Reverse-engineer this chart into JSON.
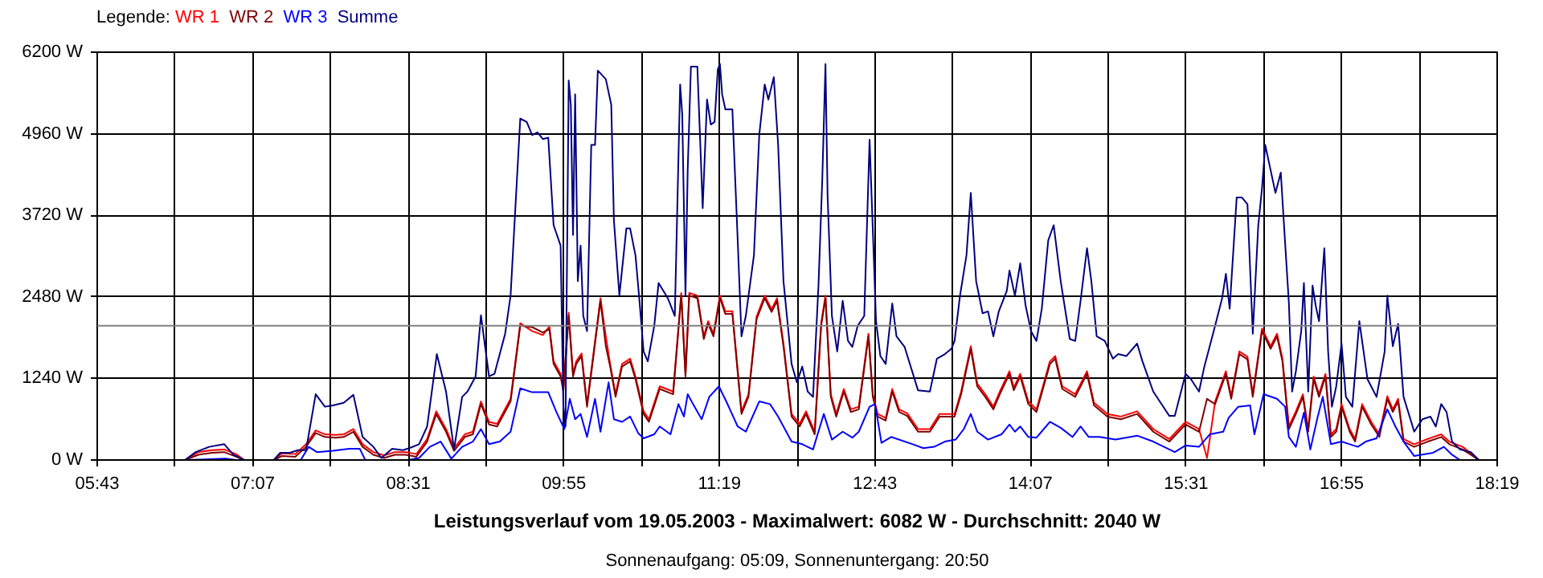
{
  "chart_data": {
    "type": "line",
    "title": "Leistungsverlauf vom 19.05.2003 - Maximalwert: 6082 W - Durchschnitt: 2040 W",
    "subtitle": "Sonnenaufgang: 05:09, Sonnenuntergang: 20:50",
    "legend_title": "Legende:",
    "legend": "top left",
    "grid": true,
    "xlim": [
      5.7167,
      18.3167
    ],
    "xticks": [
      {
        "value": 5.7167,
        "label": "05:43"
      },
      {
        "value": 6.4167,
        "label": null
      },
      {
        "value": 7.1167,
        "label": "07:07"
      },
      {
        "value": 7.8167,
        "label": null
      },
      {
        "value": 8.5167,
        "label": "08:31"
      },
      {
        "value": 9.2167,
        "label": null
      },
      {
        "value": 9.9167,
        "label": "09:55"
      },
      {
        "value": 10.6167,
        "label": null
      },
      {
        "value": 11.3167,
        "label": "11:19"
      },
      {
        "value": 12.0167,
        "label": null
      },
      {
        "value": 12.7167,
        "label": "12:43"
      },
      {
        "value": 13.4167,
        "label": null
      },
      {
        "value": 14.1167,
        "label": "14:07"
      },
      {
        "value": 14.8167,
        "label": null
      },
      {
        "value": 15.5167,
        "label": "15:31"
      },
      {
        "value": 16.2167,
        "label": null
      },
      {
        "value": 16.9167,
        "label": "16:55"
      },
      {
        "value": 17.6167,
        "label": null
      },
      {
        "value": 18.3167,
        "label": "18:19"
      }
    ],
    "ylim": [
      0,
      6200
    ],
    "yticks": [
      {
        "value": 0,
        "label": "0 W"
      },
      {
        "value": 1240,
        "label": "1240 W"
      },
      {
        "value": 2480,
        "label": "2480 W"
      },
      {
        "value": 3720,
        "label": "3720 W"
      },
      {
        "value": 4960,
        "label": "4960 W"
      },
      {
        "value": 6200,
        "label": "6200 W"
      }
    ],
    "ref_lines": [
      {
        "axis": "y",
        "value": 2040,
        "label": null,
        "color": "#808080"
      }
    ],
    "series": [
      {
        "name": "WR 1",
        "color": "#ff0000",
        "x": [
          6.506,
          6.627,
          6.748,
          6.86,
          6.966,
          7.039,
          7.306,
          7.378,
          7.499,
          7.596,
          7.683,
          7.766,
          7.862,
          7.935,
          8.022,
          8.105,
          8.202,
          8.299,
          8.395,
          8.492,
          8.589,
          8.686,
          8.768,
          8.856,
          8.928,
          9.025,
          9.098,
          9.17,
          9.243,
          9.316,
          9.437,
          9.524,
          9.631,
          9.727,
          9.786,
          9.824,
          9.887,
          9.912,
          9.96,
          9.999,
          10.028,
          10.076,
          10.125,
          10.197,
          10.246,
          10.294,
          10.333,
          10.382,
          10.44,
          10.513,
          10.561,
          10.634,
          10.682,
          10.779,
          10.9,
          10.973,
          11.011,
          11.045,
          11.118,
          11.176,
          11.215,
          11.263,
          11.321,
          11.37,
          11.433,
          11.515,
          11.578,
          11.651,
          11.724,
          11.786,
          11.835,
          11.893,
          11.966,
          12.038,
          12.096,
          12.174,
          12.232,
          12.271,
          12.319,
          12.368,
          12.436,
          12.499,
          12.571,
          12.658,
          12.697,
          12.741,
          12.813,
          12.872,
          12.934,
          13.007,
          13.104,
          13.211,
          13.298,
          13.433,
          13.492,
          13.579,
          13.637,
          13.709,
          13.782,
          13.84,
          13.927,
          13.966,
          14.024,
          14.097,
          14.17,
          14.291,
          14.339,
          14.402,
          14.519,
          14.625,
          14.688,
          14.809,
          14.93,
          15.076,
          15.221,
          15.366,
          15.512,
          15.633,
          15.705,
          15.778,
          15.875,
          15.923,
          15.996,
          16.069,
          16.117,
          16.2,
          16.277,
          16.335,
          16.384,
          16.442,
          16.505,
          16.568,
          16.616,
          16.665,
          16.713,
          16.771,
          16.82,
          16.868,
          16.916,
          16.989,
          17.038,
          17.101,
          17.183,
          17.256,
          17.328,
          17.377,
          17.425,
          17.474,
          17.57,
          17.692,
          17.813,
          17.885,
          18.006,
          18.152
        ],
        "values": [
          0,
          120,
          150,
          160,
          90,
          0,
          0,
          100,
          90,
          240,
          450,
          390,
          380,
          390,
          470,
          240,
          120,
          70,
          120,
          120,
          90,
          320,
          740,
          470,
          180,
          390,
          430,
          890,
          580,
          550,
          930,
          2080,
          1960,
          1900,
          2030,
          1500,
          1310,
          1080,
          2240,
          1310,
          1500,
          1620,
          850,
          1810,
          2460,
          1880,
          1460,
          1000,
          1460,
          1540,
          1270,
          740,
          620,
          1120,
          1040,
          2540,
          1310,
          2540,
          2500,
          1880,
          2110,
          1920,
          2500,
          2260,
          2260,
          740,
          1000,
          2180,
          2500,
          2290,
          2460,
          1770,
          700,
          550,
          740,
          430,
          2080,
          2500,
          1000,
          700,
          1080,
          770,
          810,
          1920,
          1000,
          700,
          640,
          1080,
          770,
          710,
          470,
          470,
          700,
          700,
          1040,
          1730,
          1160,
          1000,
          810,
          1040,
          1350,
          1100,
          1310,
          890,
          770,
          1500,
          1580,
          1120,
          1000,
          1350,
          870,
          700,
          660,
          740,
          470,
          320,
          580,
          470,
          30,
          890,
          1350,
          970,
          1650,
          1570,
          1000,
          2000,
          1730,
          1920,
          1540,
          510,
          740,
          1000,
          470,
          1270,
          1000,
          1310,
          390,
          470,
          850,
          470,
          320,
          850,
          580,
          390,
          970,
          770,
          930,
          320,
          240,
          320,
          390,
          280,
          200,
          0
        ]
      },
      {
        "name": "WR 2",
        "color": "#800000",
        "x": [
          6.506,
          6.627,
          6.748,
          6.86,
          6.966,
          7.039,
          7.306,
          7.378,
          7.499,
          7.596,
          7.683,
          7.766,
          7.862,
          7.935,
          8.022,
          8.105,
          8.202,
          8.299,
          8.395,
          8.492,
          8.589,
          8.686,
          8.768,
          8.856,
          8.928,
          9.025,
          9.098,
          9.17,
          9.243,
          9.316,
          9.437,
          9.524,
          9.631,
          9.727,
          9.786,
          9.824,
          9.887,
          9.912,
          9.96,
          9.999,
          10.028,
          10.076,
          10.125,
          10.197,
          10.246,
          10.294,
          10.333,
          10.382,
          10.44,
          10.513,
          10.561,
          10.634,
          10.682,
          10.779,
          10.9,
          10.973,
          11.011,
          11.045,
          11.118,
          11.176,
          11.215,
          11.263,
          11.321,
          11.37,
          11.433,
          11.515,
          11.578,
          11.651,
          11.724,
          11.786,
          11.835,
          11.893,
          11.966,
          12.038,
          12.096,
          12.174,
          12.232,
          12.271,
          12.319,
          12.368,
          12.436,
          12.499,
          12.571,
          12.658,
          12.697,
          12.741,
          12.813,
          12.872,
          12.934,
          13.007,
          13.104,
          13.211,
          13.298,
          13.433,
          13.492,
          13.579,
          13.637,
          13.709,
          13.782,
          13.84,
          13.927,
          13.966,
          14.024,
          14.097,
          14.17,
          14.291,
          14.339,
          14.402,
          14.519,
          14.625,
          14.688,
          14.809,
          14.93,
          15.076,
          15.221,
          15.366,
          15.512,
          15.633,
          15.705,
          15.778,
          15.875,
          15.923,
          15.996,
          16.069,
          16.117,
          16.2,
          16.277,
          16.335,
          16.384,
          16.442,
          16.505,
          16.568,
          16.616,
          16.665,
          16.713,
          16.771,
          16.82,
          16.868,
          16.916,
          16.989,
          17.038,
          17.101,
          17.183,
          17.256,
          17.328,
          17.377,
          17.425,
          17.474,
          17.57,
          17.692,
          17.813,
          17.885,
          18.006,
          18.152
        ],
        "values": [
          0,
          80,
          110,
          120,
          50,
          0,
          0,
          60,
          50,
          200,
          410,
          350,
          340,
          350,
          430,
          200,
          80,
          30,
          80,
          80,
          50,
          280,
          700,
          430,
          140,
          350,
          390,
          850,
          540,
          510,
          890,
          2040,
          2020,
          1940,
          1990,
          1460,
          1270,
          1040,
          2190,
          1270,
          1460,
          1580,
          810,
          1770,
          2420,
          1730,
          1420,
          960,
          1420,
          1500,
          1230,
          700,
          580,
          1080,
          1000,
          2500,
          1270,
          2500,
          2460,
          1840,
          2070,
          1880,
          2460,
          2220,
          2220,
          700,
          960,
          2140,
          2460,
          2250,
          2420,
          1730,
          660,
          510,
          700,
          390,
          2040,
          2460,
          960,
          660,
          1040,
          730,
          770,
          1880,
          960,
          660,
          600,
          1040,
          730,
          670,
          430,
          430,
          660,
          660,
          1000,
          1690,
          1120,
          960,
          770,
          1000,
          1310,
          1060,
          1270,
          850,
          730,
          1460,
          1540,
          1080,
          960,
          1310,
          830,
          660,
          620,
          700,
          430,
          280,
          540,
          430,
          930,
          850,
          1310,
          930,
          1610,
          1530,
          960,
          1960,
          1690,
          1880,
          1500,
          470,
          700,
          960,
          430,
          1230,
          960,
          1270,
          350,
          430,
          810,
          430,
          280,
          810,
          540,
          350,
          930,
          730,
          890,
          280,
          200,
          280,
          350,
          240,
          160,
          0
        ]
      },
      {
        "name": "WR 3",
        "color": "#0000ff",
        "x": [
          6.506,
          6.869,
          6.966,
          7.548,
          7.62,
          7.693,
          7.838,
          7.984,
          8.08,
          8.129,
          8.516,
          8.613,
          8.71,
          8.807,
          8.904,
          9.001,
          9.098,
          9.17,
          9.243,
          9.34,
          9.437,
          9.524,
          9.631,
          9.776,
          9.849,
          9.921,
          9.97,
          10.018,
          10.067,
          10.125,
          10.197,
          10.246,
          10.319,
          10.367,
          10.44,
          10.513,
          10.585,
          10.634,
          10.73,
          10.779,
          10.876,
          10.948,
          10.997,
          11.031,
          11.079,
          11.157,
          11.225,
          11.312,
          11.384,
          11.481,
          11.554,
          11.675,
          11.772,
          11.845,
          11.966,
          12.062,
          12.159,
          12.256,
          12.329,
          12.426,
          12.513,
          12.571,
          12.668,
          12.717,
          12.775,
          12.862,
          13.056,
          13.152,
          13.249,
          13.346,
          13.443,
          13.516,
          13.579,
          13.637,
          13.734,
          13.855,
          13.927,
          13.976,
          14.024,
          14.097,
          14.17,
          14.291,
          14.388,
          14.494,
          14.567,
          14.64,
          14.737,
          14.882,
          15.076,
          15.221,
          15.415,
          15.512,
          15.633,
          15.73,
          15.851,
          15.899,
          15.986,
          16.093,
          16.132,
          16.214,
          16.335,
          16.408,
          16.442,
          16.505,
          16.577,
          16.635,
          16.699,
          16.747,
          16.82,
          16.916,
          16.989,
          17.062,
          17.134,
          17.231,
          17.328,
          17.401,
          17.474,
          17.57,
          17.74,
          17.837,
          17.91,
          17.982
        ],
        "values": [
          0,
          20,
          0,
          0,
          200,
          120,
          140,
          170,
          170,
          0,
          0,
          30,
          200,
          280,
          20,
          200,
          280,
          470,
          240,
          280,
          430,
          1090,
          1030,
          1030,
          730,
          470,
          930,
          620,
          700,
          350,
          930,
          430,
          1180,
          620,
          580,
          660,
          410,
          330,
          390,
          510,
          390,
          850,
          660,
          1000,
          850,
          620,
          960,
          1120,
          870,
          510,
          430,
          890,
          850,
          660,
          280,
          240,
          160,
          700,
          310,
          430,
          340,
          430,
          810,
          850,
          260,
          350,
          240,
          180,
          200,
          280,
          310,
          470,
          700,
          430,
          310,
          390,
          540,
          430,
          510,
          350,
          340,
          580,
          490,
          350,
          510,
          350,
          350,
          310,
          370,
          280,
          120,
          220,
          200,
          390,
          430,
          640,
          810,
          830,
          390,
          1000,
          930,
          810,
          350,
          200,
          720,
          160,
          640,
          960,
          240,
          280,
          240,
          200,
          280,
          330,
          770,
          510,
          280,
          60,
          110,
          200,
          80,
          0
        ]
      },
      {
        "name": "Summe",
        "color": "#000080",
        "x": [
          6.506,
          6.603,
          6.724,
          6.86,
          6.942,
          7.039,
          7.306,
          7.364,
          7.451,
          7.524,
          7.596,
          7.683,
          7.766,
          7.838,
          7.935,
          8.022,
          8.105,
          8.202,
          8.274,
          8.371,
          8.468,
          8.526,
          8.613,
          8.686,
          8.773,
          8.856,
          8.928,
          9.001,
          9.049,
          9.122,
          9.17,
          9.243,
          9.292,
          9.388,
          9.437,
          9.524,
          9.582,
          9.631,
          9.679,
          9.727,
          9.776,
          9.824,
          9.887,
          9.912,
          9.931,
          9.96,
          9.979,
          9.999,
          10.018,
          10.042,
          10.067,
          10.091,
          10.125,
          10.163,
          10.197,
          10.222,
          10.294,
          10.343,
          10.367,
          10.416,
          10.479,
          10.513,
          10.561,
          10.595,
          10.634,
          10.672,
          10.73,
          10.769,
          10.852,
          10.915,
          10.963,
          10.982,
          11.011,
          11.031,
          11.06,
          11.118,
          11.166,
          11.205,
          11.239,
          11.273,
          11.302,
          11.321,
          11.341,
          11.37,
          11.433,
          11.481,
          11.515,
          11.554,
          11.627,
          11.675,
          11.724,
          11.757,
          11.806,
          11.845,
          11.893,
          11.966,
          12.014,
          12.062,
          12.111,
          12.159,
          12.208,
          12.242,
          12.271,
          12.29,
          12.329,
          12.377,
          12.426,
          12.474,
          12.513,
          12.561,
          12.62,
          12.668,
          12.707,
          12.726,
          12.765,
          12.813,
          12.872,
          12.91,
          12.983,
          13.104,
          13.211,
          13.274,
          13.346,
          13.404,
          13.433,
          13.482,
          13.54,
          13.579,
          13.627,
          13.685,
          13.734,
          13.782,
          13.831,
          13.903,
          13.927,
          13.976,
          14.024,
          14.073,
          14.121,
          14.17,
          14.218,
          14.276,
          14.325,
          14.388,
          14.47,
          14.519,
          14.567,
          14.625,
          14.664,
          14.712,
          14.785,
          14.858,
          14.906,
          14.979,
          15.076,
          15.124,
          15.221,
          15.366,
          15.415,
          15.512,
          15.56,
          15.633,
          15.681,
          15.778,
          15.841,
          15.875,
          15.909,
          15.972,
          16.02,
          16.069,
          16.117,
          16.166,
          16.2,
          16.229,
          16.277,
          16.321,
          16.369,
          16.408,
          16.442,
          16.471,
          16.505,
          16.553,
          16.577,
          16.616,
          16.655,
          16.684,
          16.713,
          16.761,
          16.795,
          16.829,
          16.868,
          16.916,
          16.955,
          17.013,
          17.076,
          17.149,
          17.231,
          17.304,
          17.328,
          17.377,
          17.425,
          17.474,
          17.57,
          17.643,
          17.716,
          17.764,
          17.813,
          17.861,
          17.91,
          17.982,
          18.079,
          18.152
        ],
        "values": [
          0,
          120,
          200,
          240,
          80,
          0,
          0,
          110,
          110,
          150,
          150,
          1000,
          810,
          830,
          870,
          990,
          350,
          200,
          30,
          170,
          150,
          180,
          240,
          510,
          1610,
          1040,
          160,
          960,
          1040,
          1270,
          2200,
          1270,
          1310,
          1920,
          2500,
          5190,
          5140,
          4940,
          4980,
          4880,
          4900,
          3570,
          3260,
          810,
          510,
          5770,
          5400,
          3420,
          5560,
          2720,
          3260,
          2190,
          1960,
          4790,
          4790,
          5920,
          5790,
          5400,
          3640,
          2500,
          3520,
          3520,
          3110,
          2460,
          1650,
          1500,
          2040,
          2690,
          2460,
          2190,
          5710,
          5250,
          2500,
          4410,
          5980,
          5980,
          3830,
          5480,
          5100,
          5140,
          5940,
          6020,
          5560,
          5330,
          5330,
          3340,
          1880,
          2190,
          3110,
          4940,
          5710,
          5480,
          5820,
          4790,
          2720,
          1460,
          1180,
          1420,
          1040,
          960,
          2650,
          4250,
          6020,
          4020,
          2190,
          1650,
          2420,
          1810,
          1720,
          2040,
          2190,
          4870,
          3030,
          2110,
          1580,
          1460,
          2380,
          1880,
          1720,
          1060,
          1040,
          1540,
          1610,
          1690,
          1810,
          2500,
          3110,
          4060,
          2720,
          2230,
          2260,
          1880,
          2260,
          2570,
          2880,
          2500,
          2990,
          2340,
          1960,
          1810,
          2300,
          3340,
          3570,
          2720,
          1840,
          1810,
          2420,
          3220,
          2720,
          1880,
          1810,
          1540,
          1610,
          1580,
          1770,
          1500,
          1040,
          670,
          670,
          1310,
          1230,
          1040,
          1420,
          2040,
          2460,
          2830,
          2300,
          3990,
          3990,
          3890,
          1920,
          3560,
          4130,
          4790,
          4410,
          4060,
          4370,
          3300,
          2380,
          1040,
          1350,
          1960,
          2690,
          1040,
          2650,
          2340,
          2110,
          3220,
          1650,
          810,
          1120,
          1770,
          960,
          810,
          2110,
          1230,
          960,
          1650,
          2500,
          1730,
          2070,
          960,
          430,
          620,
          660,
          510,
          850,
          730,
          280,
          160,
          120,
          0
        ]
      }
    ]
  }
}
